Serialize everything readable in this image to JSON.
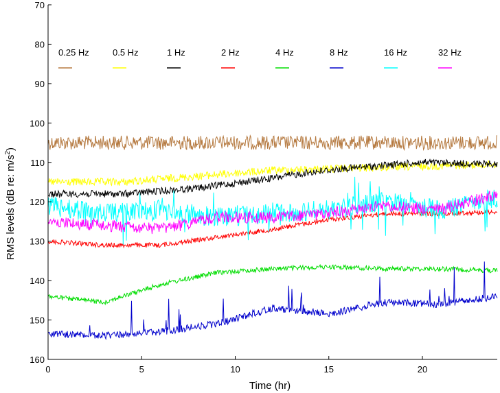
{
  "chart_data": {
    "type": "line",
    "title": "",
    "xlabel": "Time (hr)",
    "ylabel_main": "RMS levels (dB re: m/s",
    "ylabel_sup": "2",
    "ylabel_close": ")",
    "xlim": [
      0,
      24
    ],
    "ylim": [
      70,
      160
    ],
    "y_inverted": true,
    "grid": false,
    "legend_position": "top",
    "x_ticks": [
      0,
      5,
      10,
      15,
      20
    ],
    "y_ticks": [
      70,
      80,
      90,
      100,
      110,
      120,
      130,
      140,
      150,
      160
    ],
    "series": [
      {
        "name": "0.25 Hz",
        "color": "#b5793f",
        "noise": 1.8,
        "x": [
          0,
          6,
          12,
          18,
          24
        ],
        "y": [
          105,
          105,
          105,
          105,
          105
        ]
      },
      {
        "name": "0.5 Hz",
        "color": "#ffff00",
        "noise": 1.0,
        "x": [
          0,
          4,
          8,
          12,
          16,
          20,
          24
        ],
        "y": [
          115,
          115,
          113.5,
          112,
          111.5,
          111,
          110.5
        ]
      },
      {
        "name": "1 Hz",
        "color": "#000000",
        "noise": 0.9,
        "x": [
          0,
          4,
          8,
          12,
          14,
          16,
          20,
          24
        ],
        "y": [
          118,
          118,
          116.5,
          114,
          112.5,
          111.5,
          110,
          110.5
        ]
      },
      {
        "name": "2 Hz",
        "color": "#ff0000",
        "noise": 0.6,
        "x": [
          0,
          3,
          6,
          9,
          12,
          15,
          18,
          21,
          24
        ],
        "y": [
          130,
          131,
          131,
          129,
          127,
          124.5,
          123,
          123,
          122.5
        ]
      },
      {
        "name": "4 Hz",
        "color": "#00dd00",
        "noise": 0.6,
        "x": [
          0,
          3,
          6,
          9,
          12,
          15,
          18,
          21,
          24
        ],
        "y": [
          144,
          145.5,
          141,
          138,
          137,
          136.5,
          137,
          137,
          137.5
        ]
      },
      {
        "name": "8 Hz",
        "color": "#0000cc",
        "noise": 0.9,
        "x": [
          0,
          3,
          6,
          9,
          12,
          15,
          18,
          21,
          24
        ],
        "y": [
          153.5,
          154,
          153,
          151,
          147,
          148.5,
          145.5,
          146,
          144
        ]
      },
      {
        "name": "16 Hz",
        "color": "#00ffff",
        "noise": 2.5,
        "x": [
          0,
          3,
          6,
          9,
          12,
          15,
          18,
          21,
          24
        ],
        "y": [
          121,
          123,
          122,
          124,
          123,
          122,
          120,
          122,
          119
        ]
      },
      {
        "name": "32 Hz",
        "color": "#ff00ff",
        "noise": 1.5,
        "x": [
          0,
          3,
          6,
          9,
          12,
          15,
          18,
          21,
          24
        ],
        "y": [
          125,
          126,
          127,
          124,
          124,
          123,
          121,
          122,
          118
        ]
      }
    ]
  }
}
